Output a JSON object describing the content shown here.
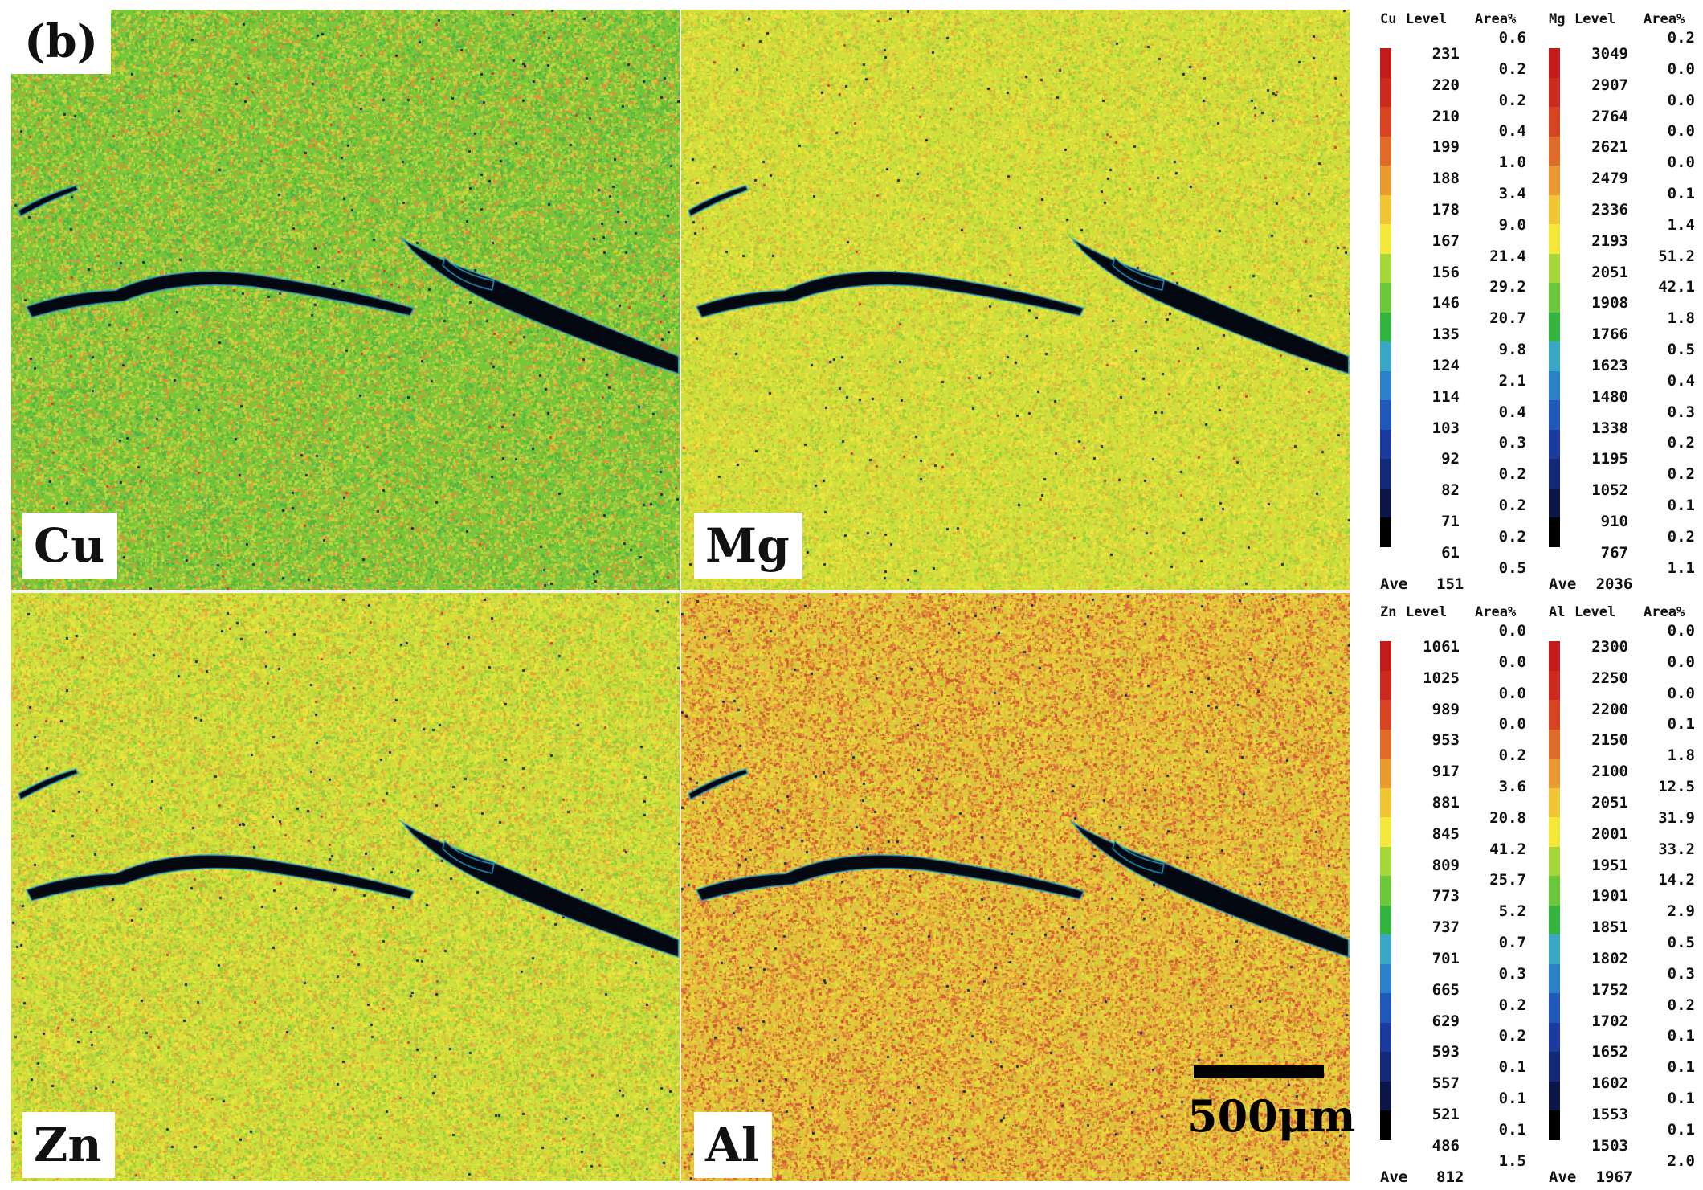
{
  "figure": {
    "panel_tag": "(b)",
    "scale_bar_label": "500μm"
  },
  "maps": [
    {
      "element": "Cu",
      "base": "#7cc63a",
      "speckle": [
        "#5bb832",
        "#9fd23c",
        "#c5d83e",
        "#d8c43c",
        "#e0903a",
        "#4fb54a",
        "#b8d040",
        "#6cc838"
      ]
    },
    {
      "element": "Mg",
      "base": "#d2e03c",
      "speckle": [
        "#e8e83a",
        "#b8da3a",
        "#9ccf3a",
        "#e6d23a",
        "#f0e640",
        "#c8dc3c",
        "#e0b43a"
      ]
    },
    {
      "element": "Zn",
      "base": "#cfe03c",
      "speckle": [
        "#e6e63a",
        "#a8d43a",
        "#90cc3a",
        "#e4c23a",
        "#f0e43e",
        "#bcd83c",
        "#e0a43a"
      ]
    },
    {
      "element": "Al",
      "base": "#e2c43a",
      "speckle": [
        "#e8a03a",
        "#e4e03a",
        "#d8783a",
        "#c8d23c",
        "#f0d43c",
        "#e08838",
        "#d45a34"
      ]
    }
  ],
  "colors": {
    "scale": [
      "#c31a1a",
      "#cd2a1f",
      "#d64424",
      "#e06a2a",
      "#e99a30",
      "#efc534",
      "#f4e83a",
      "#a6d73a",
      "#6cc83a",
      "#32b43e",
      "#38a8c4",
      "#2b80c8",
      "#1f58b8",
      "#1a3a9e",
      "#142878",
      "#0c1646",
      "#000000"
    ]
  },
  "legends": [
    {
      "element": "Cu",
      "level_header": "Level",
      "area_header": "Area%",
      "levels": [
        "231",
        "220",
        "210",
        "199",
        "188",
        "178",
        "167",
        "156",
        "146",
        "135",
        "124",
        "114",
        "103",
        "92",
        "82",
        "71",
        "61"
      ],
      "areas": [
        "0.6",
        "0.2",
        "0.2",
        "0.4",
        "1.0",
        "3.4",
        "9.0",
        "21.4",
        "29.2",
        "20.7",
        "9.8",
        "2.1",
        "0.4",
        "0.3",
        "0.2",
        "0.2",
        "0.2",
        "0.5"
      ],
      "ave_label": "Ave",
      "ave_value": "151"
    },
    {
      "element": "Mg",
      "level_header": "Level",
      "area_header": "Area%",
      "levels": [
        "3049",
        "2907",
        "2764",
        "2621",
        "2479",
        "2336",
        "2193",
        "2051",
        "1908",
        "1766",
        "1623",
        "1480",
        "1338",
        "1195",
        "1052",
        "910",
        "767"
      ],
      "areas": [
        "0.2",
        "0.0",
        "0.0",
        "0.0",
        "0.0",
        "0.1",
        "1.4",
        "51.2",
        "42.1",
        "1.8",
        "0.5",
        "0.4",
        "0.3",
        "0.2",
        "0.2",
        "0.1",
        "0.2",
        "1.1"
      ],
      "ave_label": "Ave",
      "ave_value": "2036"
    },
    {
      "element": "Zn",
      "level_header": "Level",
      "area_header": "Area%",
      "levels": [
        "1061",
        "1025",
        "989",
        "953",
        "917",
        "881",
        "845",
        "809",
        "773",
        "737",
        "701",
        "665",
        "629",
        "593",
        "557",
        "521",
        "486"
      ],
      "areas": [
        "0.0",
        "0.0",
        "0.0",
        "0.0",
        "0.2",
        "3.6",
        "20.8",
        "41.2",
        "25.7",
        "5.2",
        "0.7",
        "0.3",
        "0.2",
        "0.2",
        "0.1",
        "0.1",
        "0.1",
        "1.5"
      ],
      "ave_label": "Ave",
      "ave_value": "812"
    },
    {
      "element": "Al",
      "level_header": "Level",
      "area_header": "Area%",
      "levels": [
        "2300",
        "2250",
        "2200",
        "2150",
        "2100",
        "2051",
        "2001",
        "1951",
        "1901",
        "1851",
        "1802",
        "1752",
        "1702",
        "1652",
        "1602",
        "1553",
        "1503"
      ],
      "areas": [
        "0.0",
        "0.0",
        "0.0",
        "0.1",
        "1.8",
        "12.5",
        "31.9",
        "33.2",
        "14.2",
        "2.9",
        "0.5",
        "0.3",
        "0.2",
        "0.1",
        "0.1",
        "0.1",
        "0.1",
        "2.0"
      ],
      "ave_label": "Ave",
      "ave_value": "1967"
    }
  ]
}
